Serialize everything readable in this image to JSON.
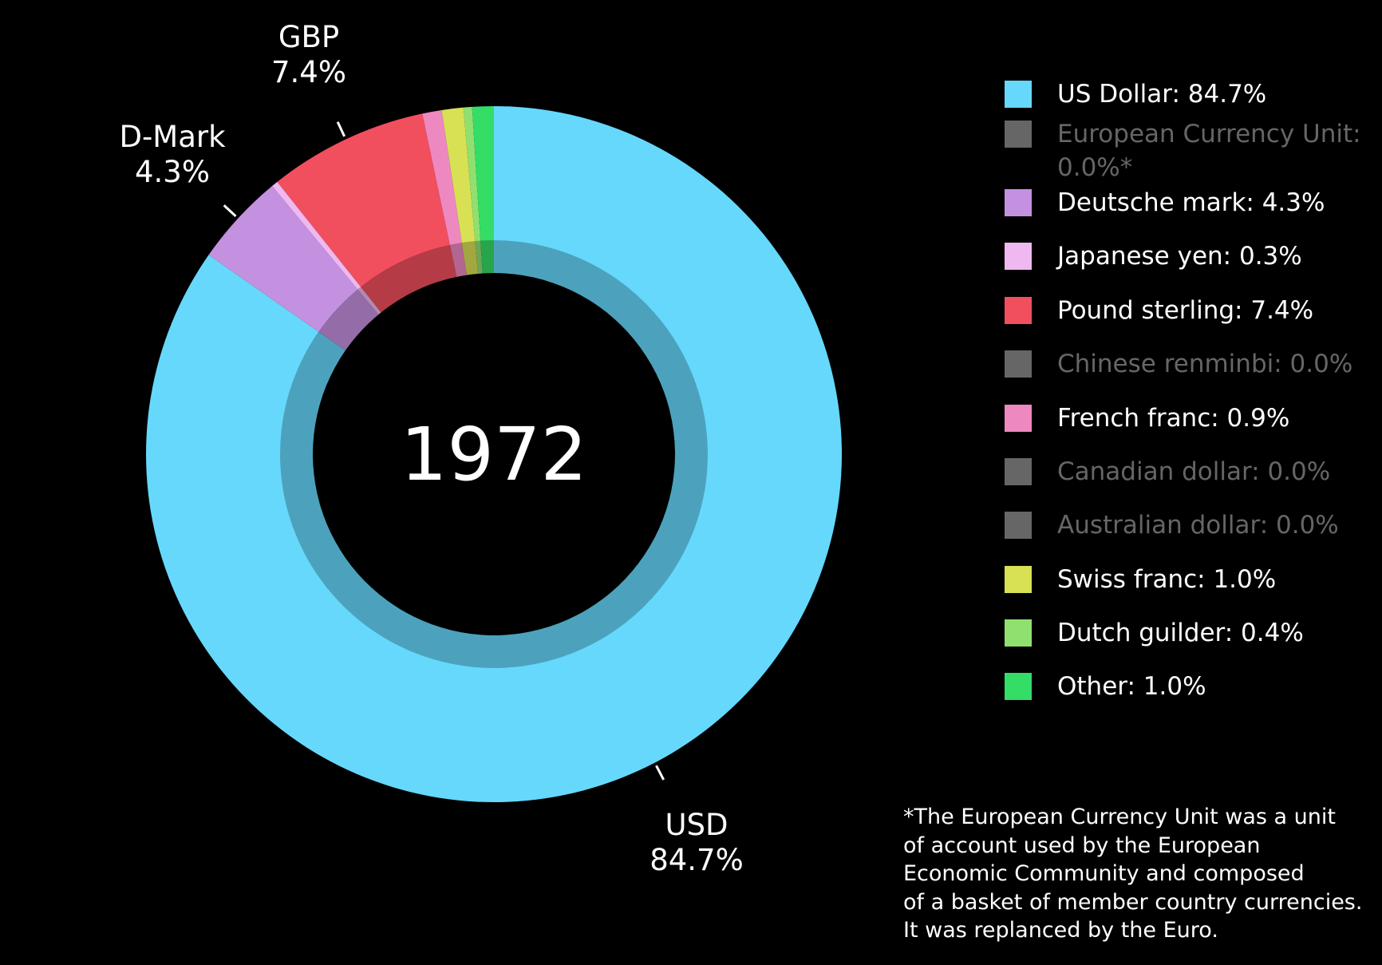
{
  "chart_data": {
    "type": "pie",
    "center_label": "1972",
    "categories": [
      "US Dollar: 84.7%",
      "European Currency Unit: 0.0%*",
      "Deutsche mark: 4.3%",
      "Japanese yen: 0.3%",
      "Pound sterling: 7.4%",
      "Chinese renminbi: 0.0%",
      "French franc: 0.9%",
      "Canadian dollar: 0.0%",
      "Australian dollar: 0.0%",
      "Swiss franc: 1.0%",
      "Dutch guilder: 0.4%",
      "Other: 1.0%"
    ],
    "values": [
      84.7,
      0.0,
      4.3,
      0.3,
      7.4,
      0.0,
      0.9,
      0.0,
      0.0,
      1.0,
      0.4,
      1.0
    ],
    "colors": [
      "#66d8fc",
      "#666666",
      "#c490e0",
      "#efb8f0",
      "#f24f5e",
      "#666666",
      "#ee88c0",
      "#666666",
      "#666666",
      "#d8e054",
      "#90e070",
      "#33dd66"
    ],
    "outer_labels": [
      {
        "name": "GBP",
        "value_label": "7.4%"
      },
      {
        "name": "D-Mark",
        "value_label": "4.3%"
      },
      {
        "name": "USD",
        "value_label": "84.7%"
      }
    ],
    "footnote": [
      "*The European Currency Unit was a unit",
      "of account used by the European",
      "Economic Community and composed",
      "of a basket of member country currencies.",
      "It was replanced by the Euro."
    ]
  }
}
